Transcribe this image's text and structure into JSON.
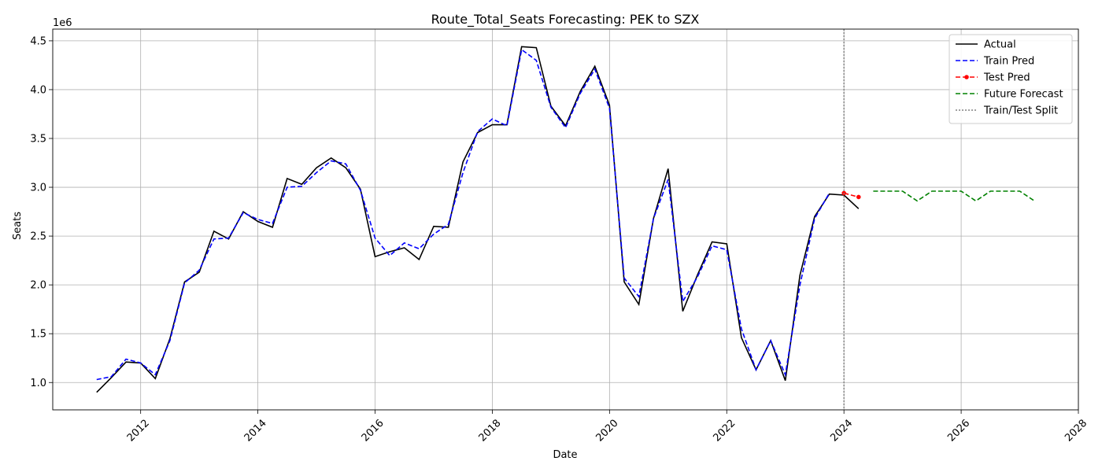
{
  "chart_data": {
    "type": "line",
    "title": "Route_Total_Seats Forecasting: PEK to SZX",
    "xlabel": "Date",
    "ylabel": "Seats",
    "y_scale_label": "1e6",
    "xlim": [
      2010.5,
      2028.0
    ],
    "ylim": [
      0.72,
      4.62
    ],
    "x_ticks": [
      2012,
      2014,
      2016,
      2018,
      2020,
      2022,
      2024,
      2026,
      2028
    ],
    "x_tick_labels": [
      "2012",
      "2014",
      "2016",
      "2018",
      "2020",
      "2022",
      "2024",
      "2026",
      "2028"
    ],
    "y_ticks": [
      1.0,
      1.5,
      2.0,
      2.5,
      3.0,
      3.5,
      4.0,
      4.5
    ],
    "y_tick_labels": [
      "1.0",
      "1.5",
      "2.0",
      "2.5",
      "3.0",
      "3.5",
      "4.0",
      "4.5"
    ],
    "grid": true,
    "legend_position": "top-right",
    "split_x": 2024.0,
    "series": [
      {
        "name": "Actual",
        "color": "#000000",
        "style": "solid",
        "x": [
          2011.25,
          2011.5,
          2011.75,
          2012.0,
          2012.25,
          2012.5,
          2012.75,
          2013.0,
          2013.25,
          2013.5,
          2013.75,
          2014.0,
          2014.25,
          2014.5,
          2014.75,
          2015.0,
          2015.25,
          2015.5,
          2015.75,
          2016.0,
          2016.25,
          2016.5,
          2016.75,
          2017.0,
          2017.25,
          2017.5,
          2017.75,
          2018.0,
          2018.25,
          2018.5,
          2018.75,
          2019.0,
          2019.25,
          2019.5,
          2019.75,
          2020.0,
          2020.25,
          2020.5,
          2020.75,
          2021.0,
          2021.25,
          2021.5,
          2021.75,
          2022.0,
          2022.25,
          2022.5,
          2022.75,
          2023.0,
          2023.25,
          2023.5,
          2023.75,
          2024.0,
          2024.25
        ],
        "values": [
          0.9,
          1.05,
          1.21,
          1.2,
          1.04,
          1.45,
          2.03,
          2.13,
          2.55,
          2.47,
          2.75,
          2.65,
          2.59,
          3.09,
          3.03,
          3.2,
          3.3,
          3.2,
          2.98,
          2.29,
          2.34,
          2.38,
          2.26,
          2.6,
          2.59,
          3.26,
          3.56,
          3.64,
          3.64,
          4.44,
          4.43,
          3.83,
          3.63,
          3.98,
          4.24,
          3.84,
          2.03,
          1.8,
          2.68,
          3.19,
          1.73,
          2.1,
          2.44,
          2.42,
          1.46,
          1.13,
          1.43,
          1.02,
          2.1,
          2.7,
          2.93,
          2.92,
          2.78
        ]
      },
      {
        "name": "Train Pred",
        "color": "#0000ff",
        "style": "dashed",
        "x": [
          2011.25,
          2011.5,
          2011.75,
          2012.0,
          2012.25,
          2012.5,
          2012.75,
          2013.0,
          2013.25,
          2013.5,
          2013.75,
          2014.0,
          2014.25,
          2014.5,
          2014.75,
          2015.0,
          2015.25,
          2015.5,
          2015.75,
          2016.0,
          2016.25,
          2016.5,
          2016.75,
          2017.0,
          2017.25,
          2017.5,
          2017.75,
          2018.0,
          2018.25,
          2018.5,
          2018.75,
          2019.0,
          2019.25,
          2019.5,
          2019.75,
          2020.0,
          2020.25,
          2020.5,
          2020.75,
          2021.0,
          2021.25,
          2021.5,
          2021.75,
          2022.0,
          2022.25,
          2022.5,
          2022.75,
          2023.0,
          2023.25,
          2023.5,
          2023.75
        ],
        "values": [
          1.03,
          1.06,
          1.24,
          1.2,
          1.08,
          1.43,
          2.02,
          2.15,
          2.47,
          2.48,
          2.74,
          2.67,
          2.63,
          3.0,
          3.01,
          3.15,
          3.27,
          3.24,
          2.97,
          2.48,
          2.3,
          2.43,
          2.37,
          2.52,
          2.62,
          3.15,
          3.57,
          3.7,
          3.63,
          4.41,
          4.3,
          3.82,
          3.61,
          3.96,
          4.21,
          3.81,
          2.07,
          1.88,
          2.68,
          3.08,
          1.83,
          2.08,
          2.4,
          2.36,
          1.55,
          1.13,
          1.43,
          1.08,
          2.0,
          2.68,
          2.94
        ]
      },
      {
        "name": "Test Pred",
        "color": "#ff0000",
        "style": "dashed-marker",
        "x": [
          2024.0,
          2024.25
        ],
        "values": [
          2.94,
          2.9
        ]
      },
      {
        "name": "Future Forecast",
        "color": "#008000",
        "style": "dashed",
        "x": [
          2024.5,
          2024.75,
          2025.0,
          2025.25,
          2025.5,
          2025.75,
          2026.0,
          2026.25,
          2026.5,
          2026.75,
          2027.0,
          2027.25
        ],
        "values": [
          2.96,
          2.96,
          2.96,
          2.86,
          2.96,
          2.96,
          2.96,
          2.86,
          2.96,
          2.96,
          2.96,
          2.86
        ]
      }
    ],
    "legend": [
      {
        "label": "Actual",
        "color": "#000000",
        "style": "solid"
      },
      {
        "label": "Train Pred",
        "color": "#0000ff",
        "style": "dashed"
      },
      {
        "label": "Test Pred",
        "color": "#ff0000",
        "style": "dashed-marker"
      },
      {
        "label": "Future Forecast",
        "color": "#008000",
        "style": "dashed"
      },
      {
        "label": "Train/Test Split",
        "color": "#808080",
        "style": "dotted"
      }
    ]
  }
}
